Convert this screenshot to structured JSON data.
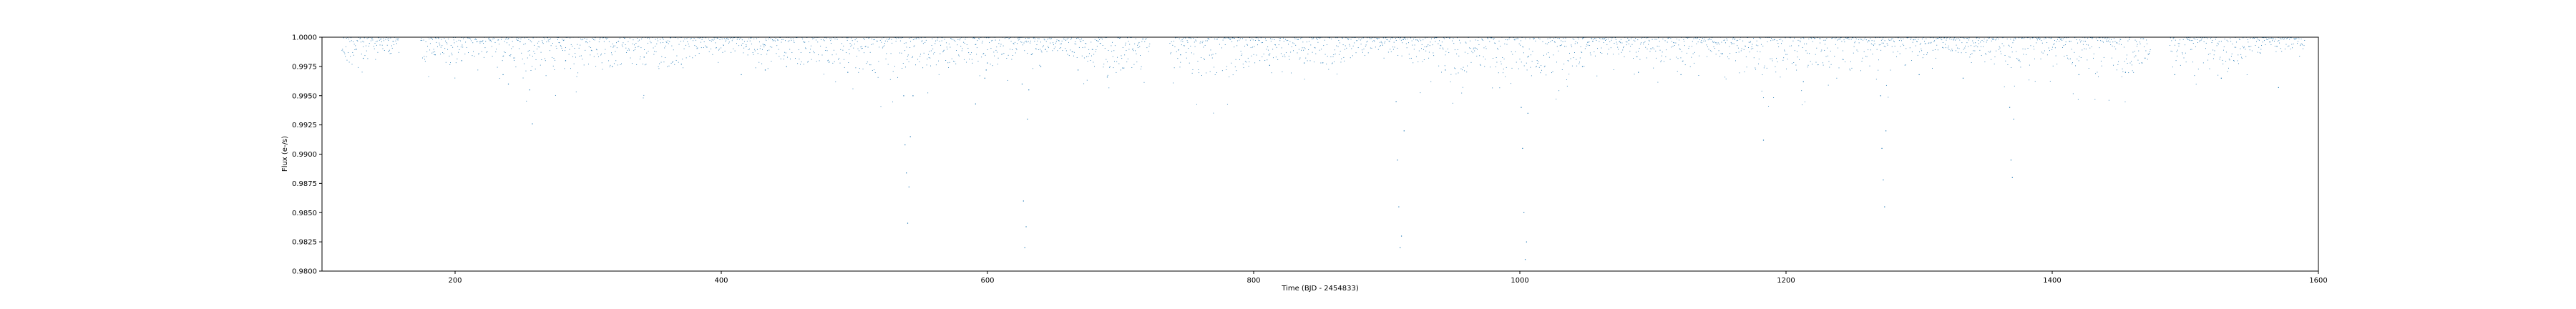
{
  "chart_data": {
    "type": "scatter",
    "title": "",
    "xlabel": "Time (BJD - 2454833)",
    "ylabel": "Flux (e-/s)",
    "xlim": [
      100,
      1600
    ],
    "ylim": [
      0.98,
      1.0
    ],
    "xticks": [
      200,
      400,
      600,
      800,
      1000,
      1200,
      1400,
      1600
    ],
    "yticks": [
      0.98,
      0.9825,
      0.985,
      0.9875,
      0.99,
      0.9925,
      0.995,
      0.9975,
      1.0
    ],
    "xtick_labels": [
      "200",
      "400",
      "600",
      "800",
      "1000",
      "1200",
      "1400",
      "1600"
    ],
    "ytick_labels": [
      "0.9800",
      "0.9825",
      "0.9850",
      "0.9875",
      "0.9900",
      "0.9925",
      "0.9950",
      "0.9975",
      "1.0000"
    ],
    "grid": false,
    "marker_color": "#1f77b4",
    "series": [
      {
        "x": [
          131,
          150,
          185,
          205,
          236,
          240,
          256,
          258,
          283,
          318,
          342,
          370,
          415,
          433,
          449,
          495,
          537,
          538,
          539,
          540,
          541,
          542,
          544,
          591,
          598,
          599,
          600,
          626,
          627,
          628,
          629,
          630,
          631,
          640,
          668,
          690,
          745,
          812,
          838,
          907,
          908,
          909,
          910,
          911,
          913,
          944,
          1001,
          1002,
          1003,
          1004,
          1005,
          1006,
          1047,
          1089,
          1121,
          1183,
          1213,
          1271,
          1272,
          1273,
          1274,
          1275,
          1300,
          1333,
          1368,
          1369,
          1370,
          1371,
          1420,
          1455,
          1492,
          1527,
          1570
        ],
        "y": [
          0.9982,
          0.9988,
          0.9985,
          0.998,
          0.9968,
          0.996,
          0.9955,
          0.9926,
          0.998,
          0.9975,
          0.9983,
          0.9977,
          0.9968,
          0.9972,
          0.9975,
          0.997,
          0.995,
          0.9908,
          0.9884,
          0.9841,
          0.9872,
          0.9915,
          0.995,
          0.9943,
          0.9965,
          0.9972,
          0.9978,
          0.996,
          0.986,
          0.982,
          0.9838,
          0.993,
          0.9955,
          0.9975,
          0.9972,
          0.9966,
          0.9985,
          0.9976,
          0.9978,
          0.9945,
          0.9895,
          0.9855,
          0.982,
          0.983,
          0.992,
          0.9972,
          0.994,
          0.9905,
          0.985,
          0.981,
          0.9825,
          0.9935,
          0.9975,
          0.997,
          0.9968,
          0.9912,
          0.9962,
          0.995,
          0.9905,
          0.9878,
          0.9855,
          0.992,
          0.9968,
          0.9965,
          0.994,
          0.9895,
          0.988,
          0.993,
          0.9968,
          0.997,
          0.9968,
          0.9965,
          0.9957
        ]
      }
    ],
    "observation_gaps": [
      [
        158,
        174
      ],
      [
        722,
        737
      ],
      [
        1474,
        1488
      ]
    ]
  }
}
